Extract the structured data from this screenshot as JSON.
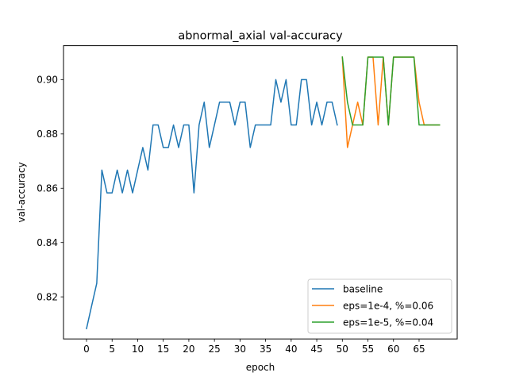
{
  "chart_data": {
    "type": "line",
    "title": "abnormal_axial val-accuracy",
    "xlabel": "epoch",
    "ylabel": "val-accuracy",
    "xlim": [
      -4.5,
      72.45
    ],
    "ylim": [
      0.8045,
      0.9125
    ],
    "xticks": [
      0,
      5,
      10,
      15,
      20,
      25,
      30,
      35,
      40,
      45,
      50,
      55,
      60,
      65
    ],
    "yticks": [
      0.82,
      0.84,
      0.86,
      0.88,
      0.9
    ],
    "ytick_labels": [
      "0.82",
      "0.84",
      "0.86",
      "0.88",
      "0.90"
    ],
    "grid": false,
    "legend_position": "lower-right",
    "series": [
      {
        "name": "baseline",
        "color": "#1f77b4",
        "x": [
          0,
          1,
          2,
          3,
          4,
          5,
          6,
          7,
          8,
          9,
          10,
          11,
          12,
          13,
          14,
          15,
          16,
          17,
          18,
          19,
          20,
          21,
          22,
          23,
          24,
          25,
          26,
          27,
          28,
          29,
          30,
          31,
          32,
          33,
          34,
          35,
          36,
          37,
          38,
          39,
          40,
          41,
          42,
          43,
          44,
          45,
          46,
          47,
          48,
          49
        ],
        "y": [
          0.8083,
          0.8167,
          0.825,
          0.8667,
          0.8583,
          0.8583,
          0.8667,
          0.8583,
          0.8667,
          0.8583,
          0.8667,
          0.875,
          0.8667,
          0.8833,
          0.8833,
          0.875,
          0.875,
          0.8833,
          0.875,
          0.8833,
          0.8833,
          0.8583,
          0.8833,
          0.8917,
          0.875,
          0.8833,
          0.8917,
          0.8917,
          0.8917,
          0.8833,
          0.8917,
          0.8917,
          0.875,
          0.8833,
          0.8833,
          0.8833,
          0.8833,
          0.9,
          0.8917,
          0.9,
          0.8833,
          0.8833,
          0.9,
          0.9,
          0.8833,
          0.8917,
          0.8833,
          0.8917,
          0.8917,
          0.8833
        ]
      },
      {
        "name": "eps=1e-4, %=0.06",
        "color": "#ff7f0e",
        "x": [
          50,
          51,
          52,
          53,
          54,
          55,
          56,
          57,
          58,
          59,
          60,
          61,
          62,
          63,
          64,
          65,
          66,
          67,
          68,
          69
        ],
        "y": [
          0.9083,
          0.875,
          0.8833,
          0.8917,
          0.8833,
          0.9083,
          0.9083,
          0.8833,
          0.9083,
          0.8833,
          0.9083,
          0.9083,
          0.9083,
          0.9083,
          0.9083,
          0.8917,
          0.8833,
          0.8833,
          0.8833,
          0.8833
        ]
      },
      {
        "name": "eps=1e-5, %=0.04",
        "color": "#2ca02c",
        "x": [
          50,
          51,
          52,
          53,
          54,
          55,
          56,
          57,
          58,
          59,
          60,
          61,
          62,
          63,
          64,
          65,
          66,
          67,
          68,
          69
        ],
        "y": [
          0.9083,
          0.8917,
          0.8833,
          0.8833,
          0.8833,
          0.9083,
          0.9083,
          0.9083,
          0.9083,
          0.8833,
          0.9083,
          0.9083,
          0.9083,
          0.9083,
          0.9083,
          0.8833,
          0.8833,
          0.8833,
          0.8833,
          0.8833
        ]
      }
    ]
  }
}
